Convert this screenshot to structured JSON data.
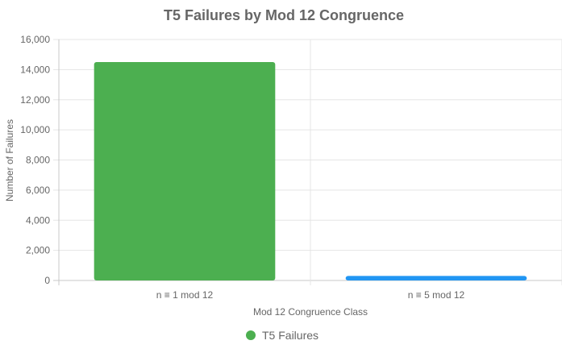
{
  "chart_data": {
    "type": "bar",
    "title": "T5 Failures by Mod 12 Congruence",
    "xlabel": "Mod 12 Congruence Class",
    "ylabel": "Number of Failures",
    "categories": [
      "n ≡ 1 mod 12",
      "n ≡ 5 mod 12"
    ],
    "series": [
      {
        "name": "T5 Failures",
        "values": [
          14500,
          300
        ],
        "colors": [
          "#4caf50",
          "#2196f3"
        ]
      }
    ],
    "ylim": [
      0,
      16000
    ],
    "yticks": [
      "0",
      "2,000",
      "4,000",
      "6,000",
      "8,000",
      "10,000",
      "12,000",
      "14,000",
      "16,000"
    ],
    "grid": true,
    "legend_position": "bottom",
    "legend_color": "#4caf50"
  }
}
